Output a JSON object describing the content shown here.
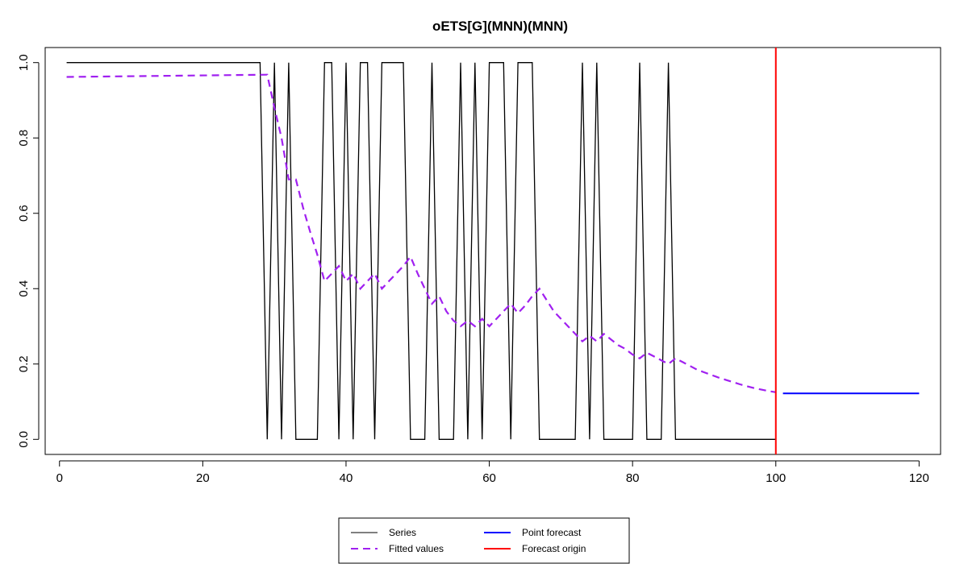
{
  "chart_data": {
    "type": "line",
    "title": "oETS[G](MNN)(MNN)",
    "xlabel": "",
    "ylabel": "",
    "xlim": [
      -2,
      123
    ],
    "ylim": [
      -0.04,
      1.04
    ],
    "x_ticks": [
      0,
      20,
      40,
      60,
      80,
      100,
      120
    ],
    "y_ticks": [
      0.0,
      0.2,
      0.4,
      0.6,
      0.8,
      1.0
    ],
    "x_tick_labels": [
      "0",
      "20",
      "40",
      "60",
      "80",
      "100",
      "120"
    ],
    "y_tick_labels": [
      "0.0",
      "0.2",
      "0.4",
      "0.6",
      "0.8",
      "1.0"
    ],
    "grid": false,
    "legend_position": "bottom",
    "series": [
      {
        "name": "Series",
        "color": "#000000",
        "style": "solid",
        "x": [
          1,
          2,
          3,
          4,
          5,
          6,
          7,
          8,
          9,
          10,
          11,
          12,
          13,
          14,
          15,
          16,
          17,
          18,
          19,
          20,
          21,
          22,
          23,
          24,
          25,
          26,
          27,
          28,
          29,
          30,
          31,
          32,
          33,
          34,
          35,
          36,
          37,
          38,
          39,
          40,
          41,
          42,
          43,
          44,
          45,
          46,
          47,
          48,
          49,
          50,
          51,
          52,
          53,
          54,
          55,
          56,
          57,
          58,
          59,
          60,
          61,
          62,
          63,
          64,
          65,
          66,
          67,
          68,
          69,
          70,
          71,
          72,
          73,
          74,
          75,
          76,
          77,
          78,
          79,
          80,
          81,
          82,
          83,
          84,
          85,
          86,
          87,
          88,
          89,
          90,
          91,
          92,
          93,
          94,
          95,
          96,
          97,
          98,
          99,
          100
        ],
        "y": [
          1,
          1,
          1,
          1,
          1,
          1,
          1,
          1,
          1,
          1,
          1,
          1,
          1,
          1,
          1,
          1,
          1,
          1,
          1,
          1,
          1,
          1,
          1,
          1,
          1,
          1,
          1,
          1,
          0,
          1,
          0,
          1,
          0,
          0,
          0,
          0,
          1,
          1,
          0,
          1,
          0,
          1,
          1,
          0,
          1,
          1,
          1,
          1,
          0,
          0,
          0,
          1,
          0,
          0,
          0,
          1,
          0,
          1,
          0,
          1,
          1,
          1,
          0,
          1,
          1,
          1,
          0,
          0,
          0,
          0,
          0,
          0,
          1,
          0,
          1,
          0,
          0,
          0,
          0,
          0,
          1,
          0,
          0,
          0,
          1,
          0,
          0,
          0,
          0,
          0,
          0,
          0,
          0,
          0,
          0,
          0,
          0,
          0,
          0,
          0
        ]
      },
      {
        "name": "Fitted values",
        "color": "#a020f0",
        "style": "dashed",
        "x": [
          1,
          29,
          30,
          31,
          32,
          33,
          34,
          35,
          36,
          37,
          38,
          39,
          40,
          41,
          42,
          43,
          44,
          45,
          46,
          47,
          48,
          49,
          50,
          51,
          52,
          53,
          54,
          55,
          56,
          57,
          58,
          59,
          60,
          61,
          62,
          63,
          64,
          65,
          66,
          67,
          68,
          69,
          70,
          71,
          72,
          73,
          74,
          75,
          76,
          77,
          78,
          79,
          80,
          81,
          82,
          83,
          84,
          85,
          86,
          87,
          88,
          89,
          90,
          91,
          92,
          93,
          94,
          95,
          96,
          97,
          98,
          99,
          100
        ],
        "y": [
          0.962,
          0.968,
          0.88,
          0.8,
          0.69,
          0.69,
          0.615,
          0.55,
          0.49,
          0.42,
          0.44,
          0.46,
          0.42,
          0.44,
          0.4,
          0.42,
          0.44,
          0.4,
          0.42,
          0.44,
          0.46,
          0.485,
          0.44,
          0.4,
          0.36,
          0.38,
          0.34,
          0.315,
          0.3,
          0.315,
          0.3,
          0.32,
          0.3,
          0.32,
          0.34,
          0.36,
          0.335,
          0.355,
          0.38,
          0.4,
          0.37,
          0.34,
          0.32,
          0.3,
          0.28,
          0.26,
          0.275,
          0.26,
          0.28,
          0.265,
          0.25,
          0.24,
          0.225,
          0.215,
          0.23,
          0.22,
          0.21,
          0.2,
          0.215,
          0.205,
          0.195,
          0.185,
          0.178,
          0.171,
          0.164,
          0.158,
          0.152,
          0.146,
          0.141,
          0.136,
          0.132,
          0.128,
          0.125
        ]
      },
      {
        "name": "Point forecast",
        "color": "#0000ff",
        "style": "solid",
        "x": [
          101,
          120
        ],
        "y": [
          0.122,
          0.122
        ]
      }
    ],
    "vlines": [
      {
        "name": "Forecast origin",
        "x": 100,
        "color": "#ff0000"
      }
    ],
    "legend": [
      {
        "label": "Series",
        "color": "#000000",
        "style": "solid"
      },
      {
        "label": "Fitted values",
        "color": "#a020f0",
        "style": "dashed"
      },
      {
        "label": "Point forecast",
        "color": "#0000ff",
        "style": "solid"
      },
      {
        "label": "Forecast origin",
        "color": "#ff0000",
        "style": "solid"
      }
    ]
  }
}
